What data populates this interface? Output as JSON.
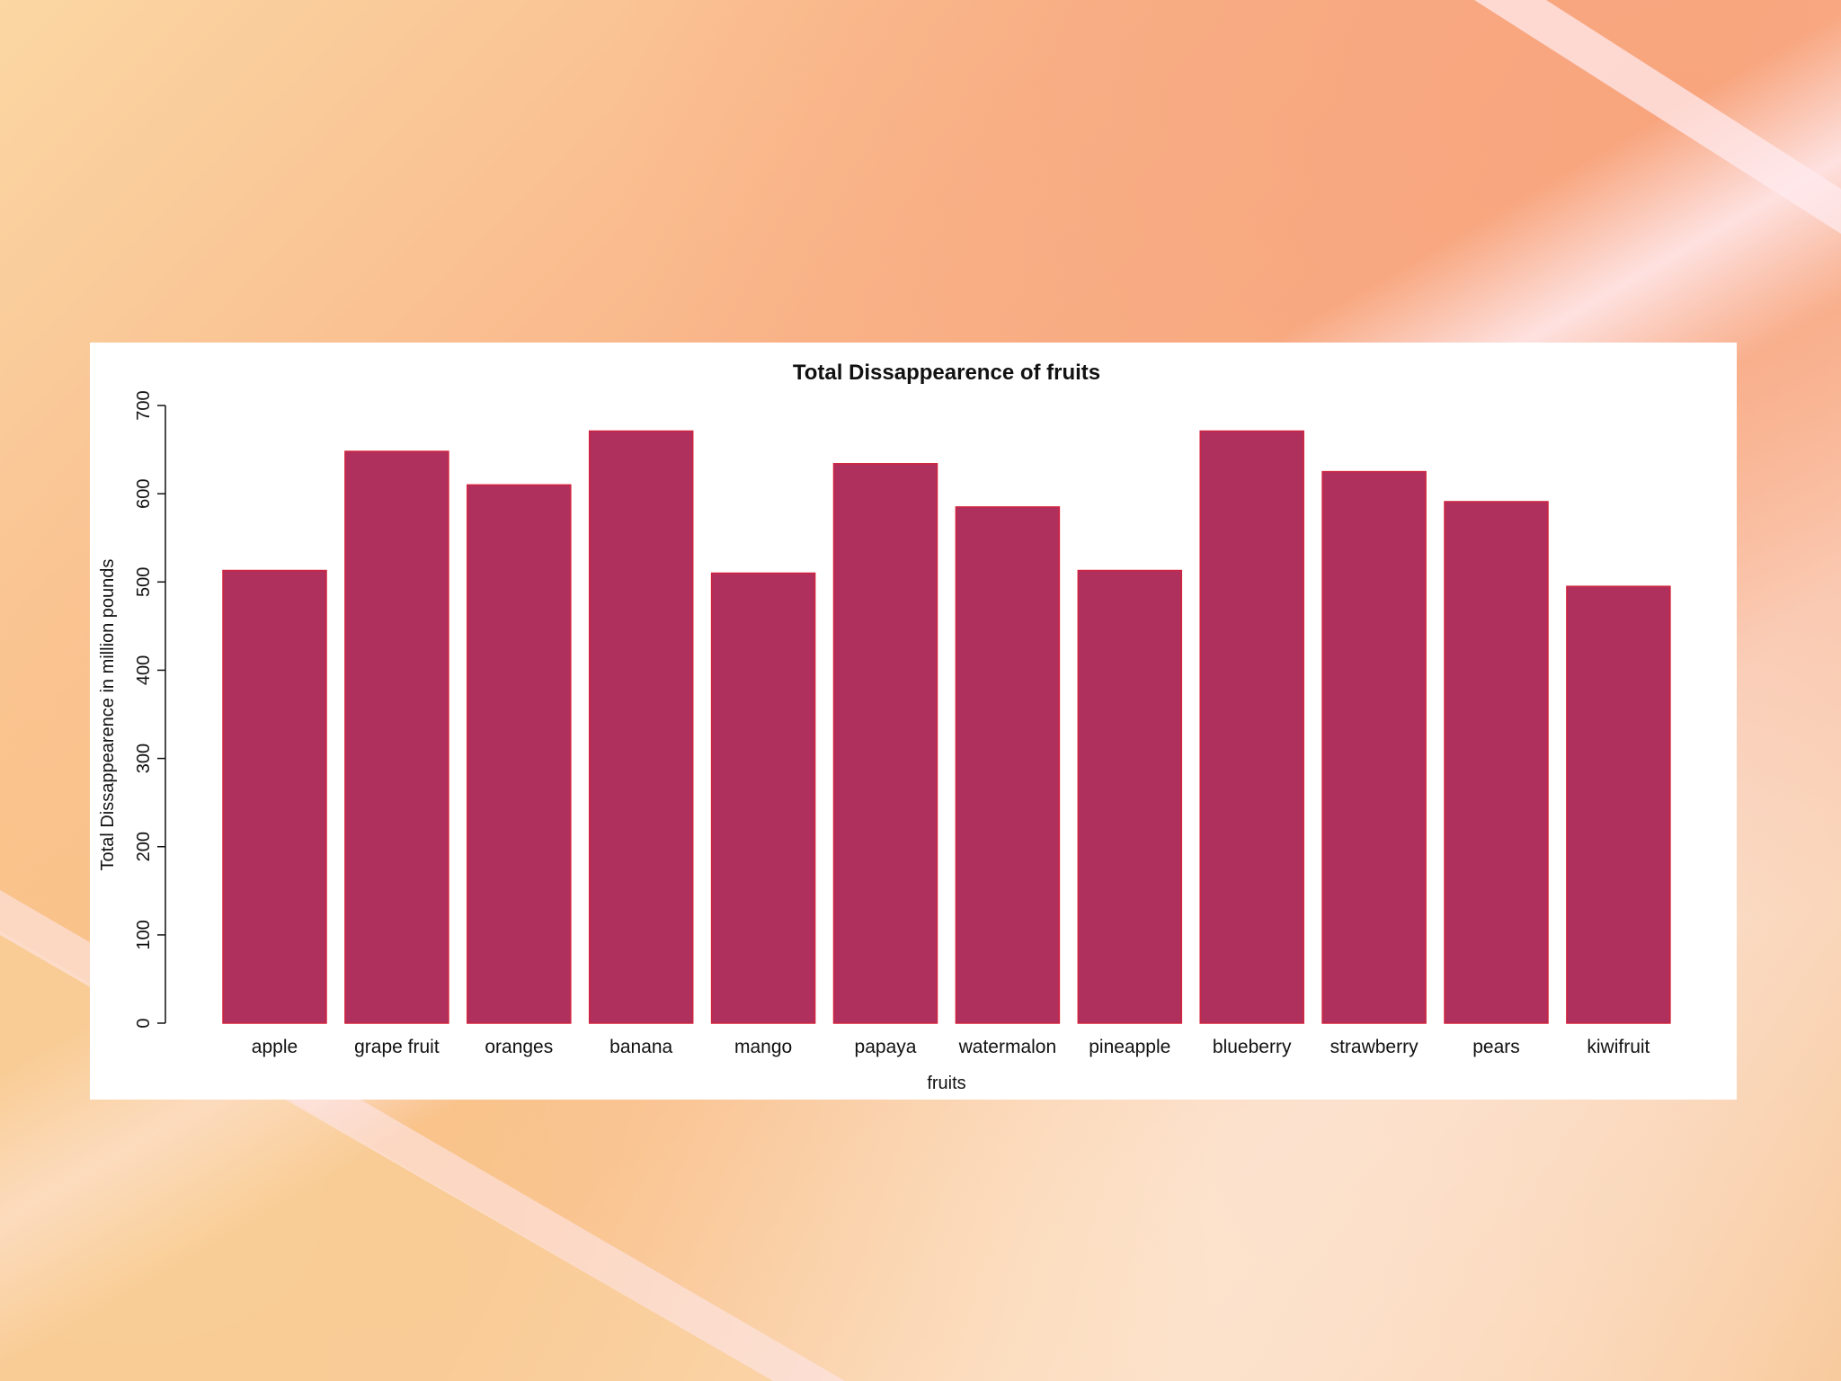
{
  "colors": {
    "bar_fill": "#b0305d",
    "bar_stroke": "#d0233e",
    "axis": "#111111",
    "card": "#ffffff"
  },
  "chart_data": {
    "type": "bar",
    "title": "Total Dissappearence of fruits",
    "xlabel": "fruits",
    "ylabel": "Total Dissappearence in million pounds",
    "ylim": [
      0,
      700
    ],
    "yticks": [
      0,
      100,
      200,
      300,
      400,
      500,
      600,
      700
    ],
    "categories": [
      "apple",
      "grape fruit",
      "oranges",
      "banana",
      "mango",
      "papaya",
      "watermalon",
      "pineapple",
      "blueberry",
      "strawberry",
      "pears",
      "kiwifruit"
    ],
    "values": [
      513,
      648,
      610,
      671,
      510,
      634,
      585,
      513,
      671,
      625,
      591,
      495
    ],
    "grid": false,
    "legend": "none"
  }
}
